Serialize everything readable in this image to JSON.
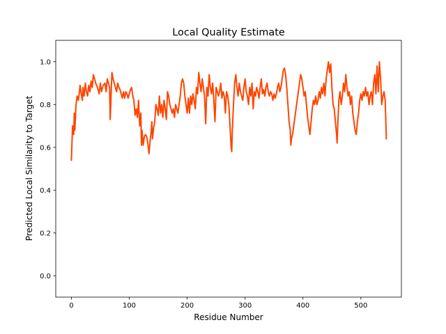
{
  "chart_data": {
    "type": "line",
    "title": "Local Quality Estimate",
    "xlabel": "Residue Number",
    "ylabel": "Predicted Local Similarity to Target",
    "xlim": [
      -27,
      570
    ],
    "ylim": [
      -0.1,
      1.1
    ],
    "xticks": [
      0,
      100,
      200,
      300,
      400,
      500
    ],
    "yticks": [
      0.0,
      0.2,
      0.4,
      0.6,
      0.8,
      1.0
    ],
    "xtick_labels": [
      "0",
      "100",
      "200",
      "300",
      "400",
      "500"
    ],
    "ytick_labels": [
      "0.0",
      "0.2",
      "0.4",
      "0.6",
      "0.8",
      "1.0"
    ],
    "grid": false,
    "legend": "none",
    "series": [
      {
        "color": "#ff4500",
        "points": [
          [
            0,
            0.54
          ],
          [
            2,
            0.7
          ],
          [
            4,
            0.66
          ],
          [
            5,
            0.76
          ],
          [
            6,
            0.68
          ],
          [
            8,
            0.8
          ],
          [
            10,
            0.84
          ],
          [
            12,
            0.82
          ],
          [
            14,
            0.86
          ],
          [
            15,
            0.89
          ],
          [
            17,
            0.85
          ],
          [
            19,
            0.82
          ],
          [
            20,
            0.88
          ],
          [
            22,
            0.84
          ],
          [
            24,
            0.9
          ],
          [
            26,
            0.86
          ],
          [
            28,
            0.84
          ],
          [
            30,
            0.89
          ],
          [
            32,
            0.86
          ],
          [
            34,
            0.91
          ],
          [
            36,
            0.88
          ],
          [
            38,
            0.94
          ],
          [
            40,
            0.92
          ],
          [
            42,
            0.9
          ],
          [
            45,
            0.88
          ],
          [
            48,
            0.85
          ],
          [
            50,
            0.9
          ],
          [
            52,
            0.86
          ],
          [
            55,
            0.89
          ],
          [
            58,
            0.9
          ],
          [
            60,
            0.86
          ],
          [
            62,
            0.92
          ],
          [
            64,
            0.9
          ],
          [
            66,
            0.88
          ],
          [
            67,
            0.73
          ],
          [
            68,
            0.8
          ],
          [
            70,
            0.95
          ],
          [
            72,
            0.92
          ],
          [
            74,
            0.9
          ],
          [
            76,
            0.88
          ],
          [
            78,
            0.86
          ],
          [
            80,
            0.9
          ],
          [
            82,
            0.88
          ],
          [
            84,
            0.87
          ],
          [
            86,
            0.85
          ],
          [
            88,
            0.83
          ],
          [
            90,
            0.86
          ],
          [
            92,
            0.83
          ],
          [
            94,
            0.86
          ],
          [
            96,
            0.85
          ],
          [
            98,
            0.83
          ],
          [
            100,
            0.85
          ],
          [
            102,
            0.87
          ],
          [
            104,
            0.88
          ],
          [
            106,
            0.84
          ],
          [
            108,
            0.82
          ],
          [
            110,
            0.75
          ],
          [
            112,
            0.78
          ],
          [
            114,
            0.74
          ],
          [
            116,
            0.82
          ],
          [
            118,
            0.7
          ],
          [
            120,
            0.76
          ],
          [
            121,
            0.61
          ],
          [
            122,
            0.68
          ],
          [
            124,
            0.61
          ],
          [
            126,
            0.65
          ],
          [
            128,
            0.66
          ],
          [
            130,
            0.65
          ],
          [
            132,
            0.62
          ],
          [
            134,
            0.57
          ],
          [
            136,
            0.63
          ],
          [
            138,
            0.68
          ],
          [
            139,
            0.72
          ],
          [
            140,
            0.64
          ],
          [
            142,
            0.69
          ],
          [
            144,
            0.72
          ],
          [
            146,
            0.8
          ],
          [
            148,
            0.78
          ],
          [
            150,
            0.75
          ],
          [
            152,
            0.84
          ],
          [
            154,
            0.76
          ],
          [
            156,
            0.8
          ],
          [
            158,
            0.74
          ],
          [
            160,
            0.82
          ],
          [
            162,
            0.78
          ],
          [
            164,
            0.73
          ],
          [
            166,
            0.86
          ],
          [
            168,
            0.84
          ],
          [
            170,
            0.8
          ],
          [
            172,
            0.78
          ],
          [
            174,
            0.76
          ],
          [
            176,
            0.78
          ],
          [
            178,
            0.74
          ],
          [
            180,
            0.8
          ],
          [
            182,
            0.78
          ],
          [
            184,
            0.76
          ],
          [
            186,
            0.8
          ],
          [
            188,
            0.84
          ],
          [
            190,
            0.9
          ],
          [
            192,
            0.92
          ],
          [
            194,
            0.9
          ],
          [
            196,
            0.84
          ],
          [
            198,
            0.8
          ],
          [
            200,
            0.76
          ],
          [
            202,
            0.83
          ],
          [
            204,
            0.76
          ],
          [
            206,
            0.84
          ],
          [
            208,
            0.8
          ],
          [
            210,
            0.85
          ],
          [
            212,
            0.82
          ],
          [
            214,
            0.78
          ],
          [
            216,
            0.88
          ],
          [
            218,
            0.85
          ],
          [
            220,
            0.95
          ],
          [
            222,
            0.9
          ],
          [
            224,
            0.86
          ],
          [
            226,
            0.92
          ],
          [
            228,
            0.88
          ],
          [
            230,
            0.84
          ],
          [
            232,
            0.71
          ],
          [
            234,
            0.88
          ],
          [
            236,
            0.84
          ],
          [
            238,
            0.94
          ],
          [
            240,
            0.88
          ],
          [
            242,
            0.85
          ],
          [
            244,
            0.9
          ],
          [
            246,
            0.82
          ],
          [
            248,
            0.72
          ],
          [
            250,
            0.88
          ],
          [
            252,
            0.86
          ],
          [
            254,
            0.84
          ],
          [
            256,
            0.86
          ],
          [
            258,
            0.9
          ],
          [
            260,
            0.83
          ],
          [
            262,
            0.86
          ],
          [
            264,
            0.84
          ],
          [
            266,
            0.76
          ],
          [
            268,
            0.86
          ],
          [
            270,
            0.84
          ],
          [
            272,
            0.8
          ],
          [
            274,
            0.7
          ],
          [
            276,
            0.6
          ],
          [
            277,
            0.58
          ],
          [
            278,
            0.68
          ],
          [
            280,
            0.8
          ],
          [
            282,
            0.9
          ],
          [
            284,
            0.94
          ],
          [
            286,
            0.88
          ],
          [
            288,
            0.84
          ],
          [
            290,
            0.9
          ],
          [
            292,
            0.86
          ],
          [
            294,
            0.84
          ],
          [
            296,
            0.82
          ],
          [
            298,
            0.88
          ],
          [
            300,
            0.92
          ],
          [
            302,
            0.86
          ],
          [
            304,
            0.84
          ],
          [
            306,
            0.8
          ],
          [
            308,
            0.88
          ],
          [
            310,
            0.84
          ],
          [
            312,
            0.9
          ],
          [
            314,
            0.78
          ],
          [
            316,
            0.86
          ],
          [
            318,
            0.84
          ],
          [
            320,
            0.88
          ],
          [
            322,
            0.86
          ],
          [
            324,
            0.83
          ],
          [
            326,
            0.88
          ],
          [
            328,
            0.92
          ],
          [
            330,
            0.85
          ],
          [
            332,
            0.87
          ],
          [
            334,
            0.84
          ],
          [
            336,
            0.88
          ],
          [
            338,
            0.9
          ],
          [
            340,
            0.86
          ],
          [
            342,
            0.84
          ],
          [
            344,
            0.86
          ],
          [
            346,
            0.85
          ],
          [
            348,
            0.82
          ],
          [
            350,
            0.85
          ],
          [
            352,
            0.83
          ],
          [
            354,
            0.85
          ],
          [
            356,
            0.88
          ],
          [
            358,
            0.9
          ],
          [
            360,
            0.86
          ],
          [
            362,
            0.88
          ],
          [
            364,
            0.92
          ],
          [
            366,
            0.96
          ],
          [
            368,
            0.97
          ],
          [
            370,
            0.94
          ],
          [
            372,
            0.88
          ],
          [
            374,
            0.8
          ],
          [
            376,
            0.72
          ],
          [
            378,
            0.68
          ],
          [
            379,
            0.61
          ],
          [
            380,
            0.64
          ],
          [
            382,
            0.66
          ],
          [
            384,
            0.7
          ],
          [
            386,
            0.74
          ],
          [
            388,
            0.78
          ],
          [
            390,
            0.82
          ],
          [
            392,
            0.86
          ],
          [
            394,
            0.9
          ],
          [
            396,
            0.94
          ],
          [
            398,
            0.92
          ],
          [
            400,
            0.88
          ],
          [
            402,
            0.84
          ],
          [
            404,
            0.86
          ],
          [
            406,
            0.8
          ],
          [
            408,
            0.74
          ],
          [
            410,
            0.7
          ],
          [
            412,
            0.66
          ],
          [
            414,
            0.72
          ],
          [
            416,
            0.78
          ],
          [
            418,
            0.82
          ],
          [
            420,
            0.8
          ],
          [
            422,
            0.84
          ],
          [
            424,
            0.8
          ],
          [
            426,
            0.82
          ],
          [
            428,
            0.86
          ],
          [
            430,
            0.83
          ],
          [
            432,
            0.88
          ],
          [
            434,
            0.85
          ],
          [
            436,
            0.9
          ],
          [
            438,
            0.84
          ],
          [
            440,
            0.92
          ],
          [
            442,
            0.96
          ],
          [
            444,
            1.0
          ],
          [
            446,
            0.95
          ],
          [
            448,
            0.99
          ],
          [
            450,
            0.88
          ],
          [
            452,
            0.8
          ],
          [
            454,
            0.78
          ],
          [
            456,
            0.72
          ],
          [
            458,
            0.66
          ],
          [
            459,
            0.62
          ],
          [
            460,
            0.7
          ],
          [
            462,
            0.82
          ],
          [
            464,
            0.86
          ],
          [
            466,
            0.8
          ],
          [
            468,
            0.84
          ],
          [
            470,
            0.9
          ],
          [
            472,
            0.86
          ],
          [
            474,
            0.94
          ],
          [
            476,
            0.88
          ],
          [
            478,
            0.84
          ],
          [
            480,
            0.86
          ],
          [
            482,
            0.8
          ],
          [
            484,
            0.84
          ],
          [
            486,
            0.76
          ],
          [
            488,
            0.72
          ],
          [
            490,
            0.68
          ],
          [
            492,
            0.66
          ],
          [
            494,
            0.72
          ],
          [
            496,
            0.76
          ],
          [
            498,
            0.82
          ],
          [
            500,
            0.85
          ],
          [
            502,
            0.82
          ],
          [
            504,
            0.86
          ],
          [
            506,
            0.84
          ],
          [
            508,
            0.88
          ],
          [
            510,
            0.84
          ],
          [
            512,
            0.86
          ],
          [
            514,
            0.8
          ],
          [
            516,
            0.84
          ],
          [
            518,
            0.86
          ],
          [
            520,
            0.8
          ],
          [
            522,
            0.9
          ],
          [
            524,
            0.94
          ],
          [
            526,
            0.85
          ],
          [
            528,
            0.98
          ],
          [
            530,
            0.86
          ],
          [
            532,
            1.0
          ],
          [
            534,
            0.92
          ],
          [
            536,
            0.8
          ],
          [
            538,
            0.84
          ],
          [
            540,
            0.86
          ],
          [
            542,
            0.82
          ],
          [
            544,
            0.64
          ]
        ]
      }
    ]
  }
}
